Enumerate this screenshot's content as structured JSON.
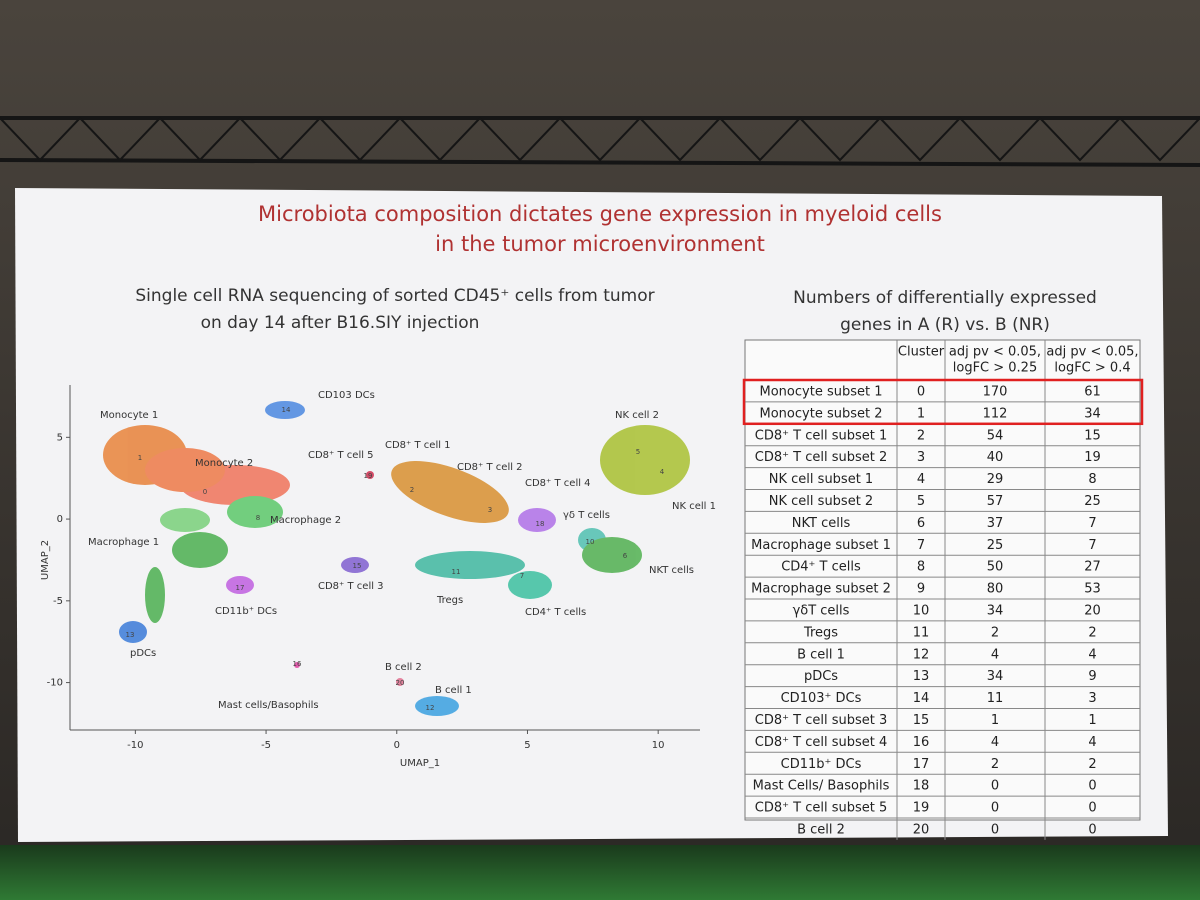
{
  "slide": {
    "title": [
      "Microbiota composition dictates gene expression in myeloid cells",
      "in the tumor microenvironment"
    ],
    "subtitle": [
      "Single cell RNA sequencing of sorted CD45⁺ cells from tumor",
      "on day 14 after B16.SIY injection"
    ]
  },
  "umap": {
    "xlabel": "UMAP_1",
    "ylabel": "UMAP_2",
    "xlim": [
      -12.5,
      11.6
    ],
    "ylim": [
      -12.9,
      8.2
    ],
    "xticks": [
      -10,
      -5,
      0,
      5,
      10
    ],
    "yticks": [
      5,
      0,
      -5,
      -10
    ],
    "cluster_names": [
      "Monocyte 1",
      "Monocyte 2",
      "CD103 DCs",
      "CD8⁺ T cell 5",
      "CD8⁺ T cell 1",
      "CD8⁺ T cell 2",
      "CD8⁺ T cell 4",
      "NK cell 2",
      "NK cell 1",
      "γδ T cells",
      "Macrophage 2",
      "Macrophage 1",
      "CD8⁺ T cell 3",
      "Tregs",
      "CD4⁺ T cells",
      "NKT cells",
      "CD11b⁺ DCs",
      "pDCs",
      "B cell 2",
      "B cell 1",
      "Mast cells/Basophils"
    ],
    "cluster_numbers": [
      "1",
      "0",
      "8",
      "14",
      "19",
      "2",
      "3",
      "18",
      "5",
      "4",
      "10",
      "6",
      "7",
      "11",
      "15",
      "17",
      "13",
      "16",
      "20",
      "12"
    ]
  },
  "table": {
    "title": [
      "Numbers of differentially expressed",
      "genes in A (R) vs. B (NR)"
    ],
    "header": [
      "Cluster",
      [
        "adj pv < 0.05,",
        "logFC > 0.25"
      ],
      [
        "adj pv < 0.05,",
        "logFC > 0.4"
      ]
    ],
    "rows": [
      [
        "Monocyte subset 1",
        0,
        170,
        61
      ],
      [
        "Monocyte subset 2",
        1,
        112,
        34
      ],
      [
        "CD8⁺ T cell subset 1",
        2,
        54,
        15
      ],
      [
        "CD8⁺ T cell subset 2",
        3,
        40,
        19
      ],
      [
        "NK cell subset 1",
        4,
        29,
        8
      ],
      [
        "NK cell subset 2",
        5,
        57,
        25
      ],
      [
        "NKT cells",
        6,
        37,
        7
      ],
      [
        "Macrophage subset 1",
        7,
        25,
        7
      ],
      [
        "CD4⁺ T cells",
        8,
        50,
        27
      ],
      [
        "Macrophage subset 2",
        9,
        80,
        53
      ],
      [
        "γδT cells",
        10,
        34,
        20
      ],
      [
        "Tregs",
        11,
        2,
        2
      ],
      [
        "B cell 1",
        12,
        4,
        4
      ],
      [
        "pDCs",
        13,
        34,
        9
      ],
      [
        "CD103⁺ DCs",
        14,
        11,
        3
      ],
      [
        "CD8⁺ T cell subset 3",
        15,
        1,
        1
      ],
      [
        "CD8⁺ T cell subset 4",
        16,
        4,
        4
      ],
      [
        "CD11b⁺ DCs",
        17,
        2,
        2
      ],
      [
        "Mast Cells/ Basophils",
        18,
        0,
        0
      ],
      [
        "CD8⁺ T cell subset 5",
        19,
        0,
        0
      ],
      [
        "B cell 2",
        20,
        0,
        0
      ]
    ]
  }
}
